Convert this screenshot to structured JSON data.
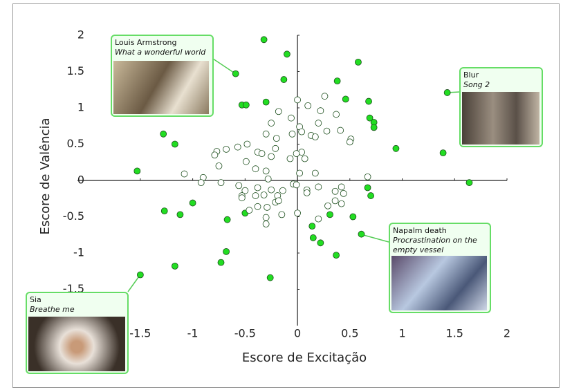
{
  "chart_data": {
    "type": "scatter",
    "xlabel": "Escore de Excitação",
    "ylabel": "Escore de Valência",
    "xlim": [
      -2.1,
      2
    ],
    "ylim": [
      -2,
      2
    ],
    "xticks": [
      -1.5,
      -1,
      -0.5,
      0,
      0.5,
      1,
      1.5,
      2
    ],
    "yticks": [
      -1.5,
      -1,
      -0.5,
      0,
      0.5,
      1,
      1.5,
      2
    ],
    "series": [
      {
        "color": "#22dd22",
        "x": [
          -0.32,
          -0.1,
          0.58,
          -0.59,
          -0.13,
          0.38,
          1.43,
          0.46,
          -0.3,
          0.68,
          -0.53,
          -0.49,
          0.69,
          0.73,
          0.73,
          -1.28,
          -1.17,
          0.94,
          1.39,
          -1.53,
          1.64,
          0.67,
          0.7,
          -1.0,
          -1.27,
          -1.12,
          -0.5,
          0.31,
          0.53,
          -0.67,
          0.14,
          0.61,
          0.15,
          0.22,
          -0.68,
          0.37,
          -0.73,
          -1.17,
          -1.5,
          -0.26
        ],
        "y": [
          1.94,
          1.74,
          1.63,
          1.47,
          1.39,
          1.37,
          1.21,
          1.12,
          1.08,
          1.09,
          1.04,
          1.04,
          0.86,
          0.8,
          0.73,
          0.64,
          0.5,
          0.44,
          0.38,
          0.13,
          -0.03,
          -0.1,
          -0.21,
          -0.31,
          -0.42,
          -0.47,
          -0.45,
          -0.47,
          -0.5,
          -0.54,
          -0.63,
          -0.74,
          -0.79,
          -0.86,
          -0.98,
          -1.03,
          -1.13,
          -1.18,
          -1.3,
          -1.34
        ]
      },
      {
        "color": "#ffffff",
        "x": [
          0,
          0.26,
          0.1,
          0.22,
          -0.18,
          0.37,
          -0.06,
          -0.25,
          0.2,
          0.02,
          -0.3,
          0.28,
          0.41,
          0.13,
          0.17,
          0.04,
          -0.05,
          -0.2,
          0.51,
          0.5,
          -0.48,
          -0.57,
          -0.68,
          -0.77,
          -0.79,
          -0.21,
          -0.38,
          -0.34,
          0.04,
          -0.01,
          -0.25,
          -0.07,
          0.07,
          -0.49,
          -0.75,
          -0.4,
          -0.3,
          -1.08,
          -0.9,
          0.02,
          0.17,
          -0.28,
          -0.92,
          -0.73,
          -0.56,
          -0.04,
          -0.01,
          0.2,
          0.42,
          0.67,
          -0.38,
          -0.5,
          -0.25,
          -0.14,
          0.09,
          0.09,
          0.36,
          -0.53,
          -0.4,
          -0.32,
          -0.19,
          -0.53,
          0.44,
          0.36,
          -0.38,
          -0.46,
          -0.29,
          -0.21,
          -0.15,
          0,
          0.2,
          0.29,
          0.42,
          -0.3,
          -0.3,
          -0.18
        ],
        "y": [
          1.11,
          1.16,
          1.03,
          0.96,
          0.95,
          0.91,
          0.86,
          0.79,
          0.79,
          0.74,
          0.64,
          0.68,
          0.69,
          0.62,
          0.6,
          0.67,
          0.64,
          0.58,
          0.57,
          0.53,
          0.5,
          0.46,
          0.43,
          0.4,
          0.35,
          0.44,
          0.39,
          0.37,
          0.39,
          0.37,
          0.33,
          0.3,
          0.3,
          0.26,
          0.2,
          0.16,
          0.13,
          0.09,
          0.04,
          0.1,
          0.1,
          0.02,
          -0.03,
          -0.03,
          -0.07,
          -0.05,
          -0.06,
          -0.09,
          -0.09,
          0.05,
          -0.1,
          -0.14,
          -0.13,
          -0.14,
          -0.13,
          -0.17,
          -0.15,
          -0.21,
          -0.21,
          -0.2,
          -0.21,
          -0.24,
          -0.18,
          -0.28,
          -0.36,
          -0.41,
          -0.37,
          -0.3,
          -0.47,
          -0.45,
          -0.53,
          -0.35,
          -0.32,
          -0.51,
          -0.6,
          -0.28
        ]
      }
    ],
    "annotations": [
      {
        "title": "Louis Armstrong",
        "subtitle": "What a wonderful world"
      },
      {
        "title": "Blur",
        "subtitle": "Song 2"
      },
      {
        "title": "Napalm death",
        "subtitle": "Procrastination on the empty vessel"
      },
      {
        "title": "Sia",
        "subtitle": "Breathe me"
      }
    ]
  }
}
